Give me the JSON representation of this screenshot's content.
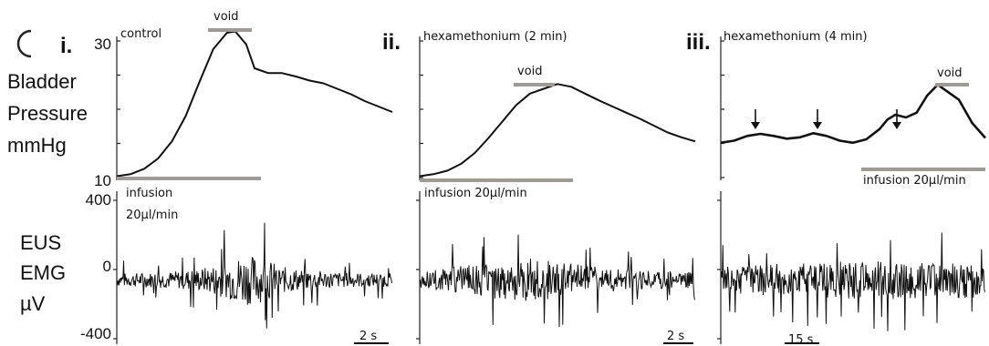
{
  "chart_data": {
    "type": "line",
    "y_axes": {
      "pressure": {
        "label_lines": [
          "Bladder",
          "Pressure",
          "mmHg"
        ],
        "range": [
          10,
          30
        ],
        "ticks": [
          "30",
          "10"
        ]
      },
      "emg": {
        "label_lines": [
          "EUS",
          "EMG",
          "µV"
        ],
        "range": [
          -400,
          400
        ],
        "ticks": [
          "400",
          "0",
          "-400"
        ]
      }
    },
    "panels": [
      {
        "id": "i",
        "roman": "i.",
        "condition": "control",
        "void_label": "void",
        "infusion_label_lines": [
          "infusion",
          "20µl/min"
        ],
        "scale_bar": "2 s",
        "pressure_trace": {
          "t": [
            0,
            0.05,
            0.1,
            0.15,
            0.2,
            0.25,
            0.3,
            0.35,
            0.4,
            0.43,
            0.47,
            0.5,
            0.55,
            0.6,
            0.65,
            0.7,
            0.75,
            0.8,
            0.85,
            0.9,
            0.95,
            1.0
          ],
          "mmHg": [
            10.2,
            10.5,
            11.3,
            12.8,
            15.3,
            19.0,
            24.0,
            28.8,
            31.2,
            31.4,
            29.5,
            26.0,
            25.3,
            25.3,
            24.8,
            24.2,
            23.8,
            23.0,
            22.2,
            21.2,
            20.4,
            19.6
          ]
        },
        "emg_envelope": {
          "t": [
            0,
            0.1,
            0.2,
            0.3,
            0.4,
            0.45,
            0.5,
            0.55,
            0.6,
            0.7,
            0.8,
            0.9,
            1.0
          ],
          "amp_uV": [
            110,
            120,
            140,
            190,
            300,
            420,
            400,
            330,
            220,
            160,
            130,
            115,
            110
          ]
        }
      },
      {
        "id": "ii",
        "roman": "ii.",
        "condition": "hexamethonium (2 min)",
        "void_label": "void",
        "infusion_label_lines": [
          "infusion 20µl/min"
        ],
        "scale_bar": "2 s",
        "pressure_trace": {
          "t": [
            0,
            0.05,
            0.1,
            0.15,
            0.2,
            0.25,
            0.3,
            0.35,
            0.4,
            0.45,
            0.5,
            0.55,
            0.6,
            0.65,
            0.7,
            0.75,
            0.8,
            0.85,
            0.9,
            0.95,
            1.0
          ],
          "mmHg": [
            10.2,
            10.5,
            11.0,
            12.0,
            13.6,
            15.8,
            18.2,
            20.6,
            22.3,
            23.0,
            23.7,
            23.3,
            22.3,
            21.3,
            20.4,
            19.5,
            18.6,
            17.6,
            16.6,
            15.9,
            15.3
          ]
        },
        "emg_envelope": {
          "t": [
            0,
            0.1,
            0.2,
            0.3,
            0.4,
            0.5,
            0.6,
            0.7,
            0.8,
            0.9,
            1.0
          ],
          "amp_uV": [
            130,
            200,
            260,
            330,
            360,
            300,
            240,
            190,
            160,
            140,
            130
          ]
        }
      },
      {
        "id": "iii",
        "roman": "iii.",
        "condition": "hexamethonium (4 min)",
        "void_label": "void",
        "infusion_label_lines": [
          "infusion 20µl/min"
        ],
        "scale_bar": "15 s",
        "arrow_count": 3,
        "pressure_trace": {
          "t": [
            0,
            0.05,
            0.1,
            0.15,
            0.2,
            0.25,
            0.3,
            0.35,
            0.4,
            0.45,
            0.5,
            0.55,
            0.6,
            0.63,
            0.66,
            0.7,
            0.74,
            0.78,
            0.82,
            0.86,
            0.9,
            0.95,
            1.0
          ],
          "mmHg": [
            15.1,
            15.4,
            16.1,
            16.4,
            16.1,
            15.7,
            15.9,
            16.5,
            16.1,
            15.4,
            15.1,
            15.6,
            17.1,
            18.5,
            19.2,
            18.8,
            19.5,
            22.0,
            23.6,
            22.5,
            21.4,
            18.0,
            15.8
          ]
        },
        "emg_envelope": {
          "t": [
            0,
            0.2,
            0.4,
            0.6,
            0.8,
            1.0
          ],
          "amp_uV": [
            220,
            260,
            300,
            320,
            310,
            290
          ]
        }
      }
    ]
  }
}
